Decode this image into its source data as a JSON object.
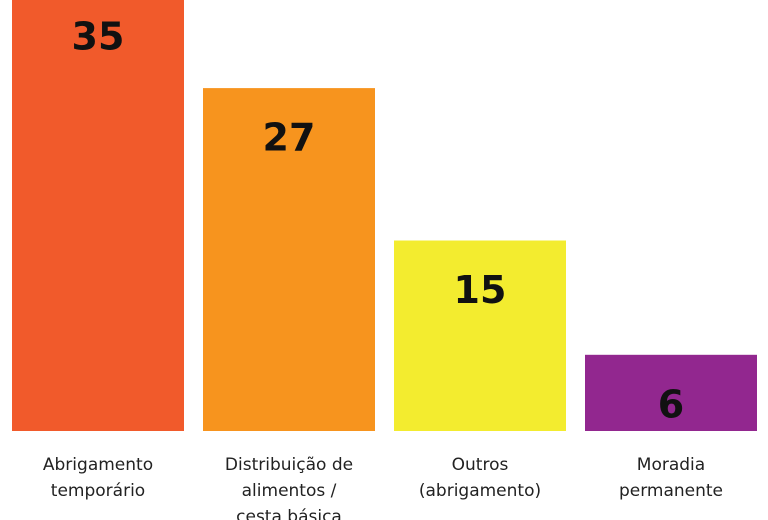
{
  "chart_data": {
    "type": "bar",
    "categories": [
      "Abrigamento\ntemporário",
      "Distribuição de\nalimentos /\ncesta básica",
      "Outros\n(abrigamento)",
      "Moradia\npermanente"
    ],
    "values": [
      35,
      27,
      15,
      6
    ],
    "colors": [
      "#f15a2b",
      "#f7941e",
      "#f3ec2f",
      "#92278f"
    ]
  }
}
